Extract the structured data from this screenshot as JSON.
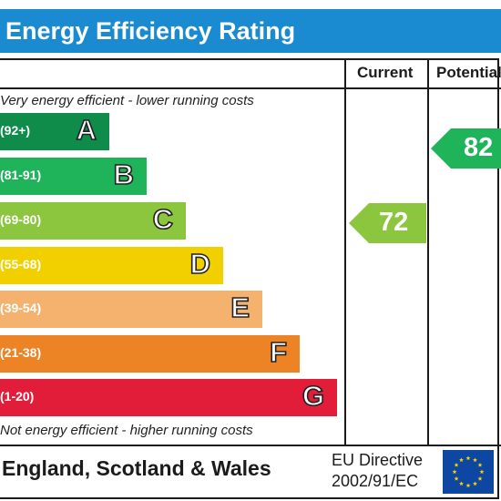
{
  "header": {
    "title": "Energy Efficiency Rating"
  },
  "columns": {
    "current": "Current",
    "potential": "Potential"
  },
  "notes": {
    "top": "Very energy efficient - lower running costs",
    "bottom": "Not energy efficient - higher running costs"
  },
  "colors": {
    "header": "#1a8ad1",
    "frame": "#1b1b1b"
  },
  "chart_data": {
    "type": "bar",
    "bands": [
      {
        "letter": "A",
        "range": "(92+)",
        "color": "#0f8c4a"
      },
      {
        "letter": "B",
        "range": "(81-91)",
        "color": "#1fb45a"
      },
      {
        "letter": "C",
        "range": "(69-80)",
        "color": "#8cc63e"
      },
      {
        "letter": "D",
        "range": "(55-68)",
        "color": "#f2d000"
      },
      {
        "letter": "E",
        "range": "(39-54)",
        "color": "#f5b26f"
      },
      {
        "letter": "F",
        "range": "(21-38)",
        "color": "#ec8325"
      },
      {
        "letter": "G",
        "range": "(1-20)",
        "color": "#e21d3a"
      }
    ],
    "ratings": [
      {
        "column": "Current",
        "value": 72,
        "band": "C",
        "color": "#8cc63e"
      },
      {
        "column": "Potential",
        "value": 82,
        "band": "B",
        "color": "#1fb45a"
      }
    ]
  },
  "footer": {
    "country": "England, Scotland & Wales",
    "eu_directive_line1": "EU Directive",
    "eu_directive_line2": "2002/91/EC",
    "flag_colors": {
      "field": "#0d47a1",
      "stars": "#ffd400"
    }
  }
}
